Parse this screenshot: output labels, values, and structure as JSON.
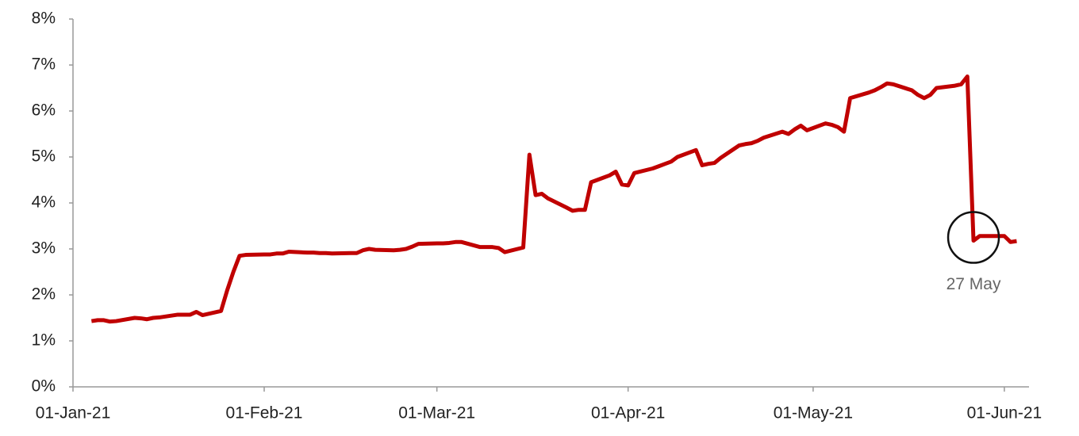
{
  "chart_data": {
    "type": "line",
    "color": "#c00000",
    "x": [
      "2021-01-04",
      "2021-01-05",
      "2021-01-06",
      "2021-01-07",
      "2021-01-08",
      "2021-01-11",
      "2021-01-12",
      "2021-01-13",
      "2021-01-14",
      "2021-01-15",
      "2021-01-18",
      "2021-01-19",
      "2021-01-20",
      "2021-01-21",
      "2021-01-22",
      "2021-01-25",
      "2021-01-26",
      "2021-01-27",
      "2021-01-28",
      "2021-01-29",
      "2021-02-01",
      "2021-02-02",
      "2021-02-03",
      "2021-02-04",
      "2021-02-05",
      "2021-02-08",
      "2021-02-09",
      "2021-02-10",
      "2021-02-11",
      "2021-02-12",
      "2021-02-15",
      "2021-02-16",
      "2021-02-17",
      "2021-02-18",
      "2021-02-19",
      "2021-02-22",
      "2021-02-23",
      "2021-02-24",
      "2021-02-25",
      "2021-02-26",
      "2021-03-01",
      "2021-03-02",
      "2021-03-03",
      "2021-03-04",
      "2021-03-05",
      "2021-03-08",
      "2021-03-09",
      "2021-03-10",
      "2021-03-11",
      "2021-03-12",
      "2021-03-15",
      "2021-03-16",
      "2021-03-17",
      "2021-03-18",
      "2021-03-19",
      "2021-03-22",
      "2021-03-23",
      "2021-03-24",
      "2021-03-25",
      "2021-03-26",
      "2021-03-29",
      "2021-03-30",
      "2021-03-31",
      "2021-04-01",
      "2021-04-02",
      "2021-04-05",
      "2021-04-06",
      "2021-04-07",
      "2021-04-08",
      "2021-04-09",
      "2021-04-12",
      "2021-04-13",
      "2021-04-14",
      "2021-04-15",
      "2021-04-16",
      "2021-04-19",
      "2021-04-20",
      "2021-04-21",
      "2021-04-22",
      "2021-04-23",
      "2021-04-26",
      "2021-04-27",
      "2021-04-28",
      "2021-04-29",
      "2021-04-30",
      "2021-05-03",
      "2021-05-04",
      "2021-05-05",
      "2021-05-06",
      "2021-05-07",
      "2021-05-10",
      "2021-05-11",
      "2021-05-12",
      "2021-05-13",
      "2021-05-14",
      "2021-05-17",
      "2021-05-18",
      "2021-05-19",
      "2021-05-20",
      "2021-05-21",
      "2021-05-24",
      "2021-05-25",
      "2021-05-26",
      "2021-05-27",
      "2021-05-28",
      "2021-05-31",
      "2021-06-01",
      "2021-06-02",
      "2021-06-03"
    ],
    "values": [
      1.43,
      1.45,
      1.45,
      1.42,
      1.43,
      1.5,
      1.49,
      1.47,
      1.5,
      1.51,
      1.57,
      1.57,
      1.57,
      1.63,
      1.56,
      1.65,
      2.1,
      2.5,
      2.85,
      2.87,
      2.88,
      2.88,
      2.9,
      2.9,
      2.94,
      2.92,
      2.92,
      2.91,
      2.91,
      2.9,
      2.91,
      2.91,
      2.97,
      3.0,
      2.98,
      2.97,
      2.98,
      3.0,
      3.05,
      3.11,
      3.12,
      3.12,
      3.13,
      3.15,
      3.15,
      3.04,
      3.04,
      3.04,
      3.02,
      2.93,
      3.03,
      5.05,
      4.17,
      4.2,
      4.1,
      3.9,
      3.83,
      3.85,
      3.85,
      4.45,
      4.6,
      4.68,
      4.4,
      4.38,
      4.65,
      4.75,
      4.8,
      4.85,
      4.9,
      5.0,
      5.15,
      4.82,
      4.85,
      4.87,
      4.98,
      5.25,
      5.28,
      5.3,
      5.35,
      5.42,
      5.55,
      5.5,
      5.6,
      5.68,
      5.58,
      5.73,
      5.7,
      5.65,
      5.55,
      6.28,
      6.4,
      6.45,
      6.52,
      6.6,
      6.58,
      6.45,
      6.35,
      6.28,
      6.35,
      6.5,
      6.55,
      6.58,
      6.75,
      3.18,
      3.28,
      3.28,
      3.28,
      3.15,
      3.17
    ],
    "xlim": [
      "2021-01-01",
      "2021-06-05"
    ],
    "xticks": [
      {
        "value": "2021-01-01",
        "label": "01-Jan-21"
      },
      {
        "value": "2021-02-01",
        "label": "01-Feb-21"
      },
      {
        "value": "2021-03-01",
        "label": "01-Mar-21"
      },
      {
        "value": "2021-04-01",
        "label": "01-Apr-21"
      },
      {
        "value": "2021-05-01",
        "label": "01-May-21"
      },
      {
        "value": "2021-06-01",
        "label": "01-Jun-21"
      }
    ],
    "ylim": [
      0,
      8
    ],
    "yticks": [
      {
        "value": 0,
        "label": "0%"
      },
      {
        "value": 1,
        "label": "1%"
      },
      {
        "value": 2,
        "label": "2%"
      },
      {
        "value": 3,
        "label": "3%"
      },
      {
        "value": 4,
        "label": "4%"
      },
      {
        "value": 5,
        "label": "5%"
      },
      {
        "value": 6,
        "label": "6%"
      },
      {
        "value": 7,
        "label": "7%"
      },
      {
        "value": 8,
        "label": "8%"
      }
    ],
    "annotation": {
      "text": "27 May",
      "x": "2021-05-27"
    }
  }
}
